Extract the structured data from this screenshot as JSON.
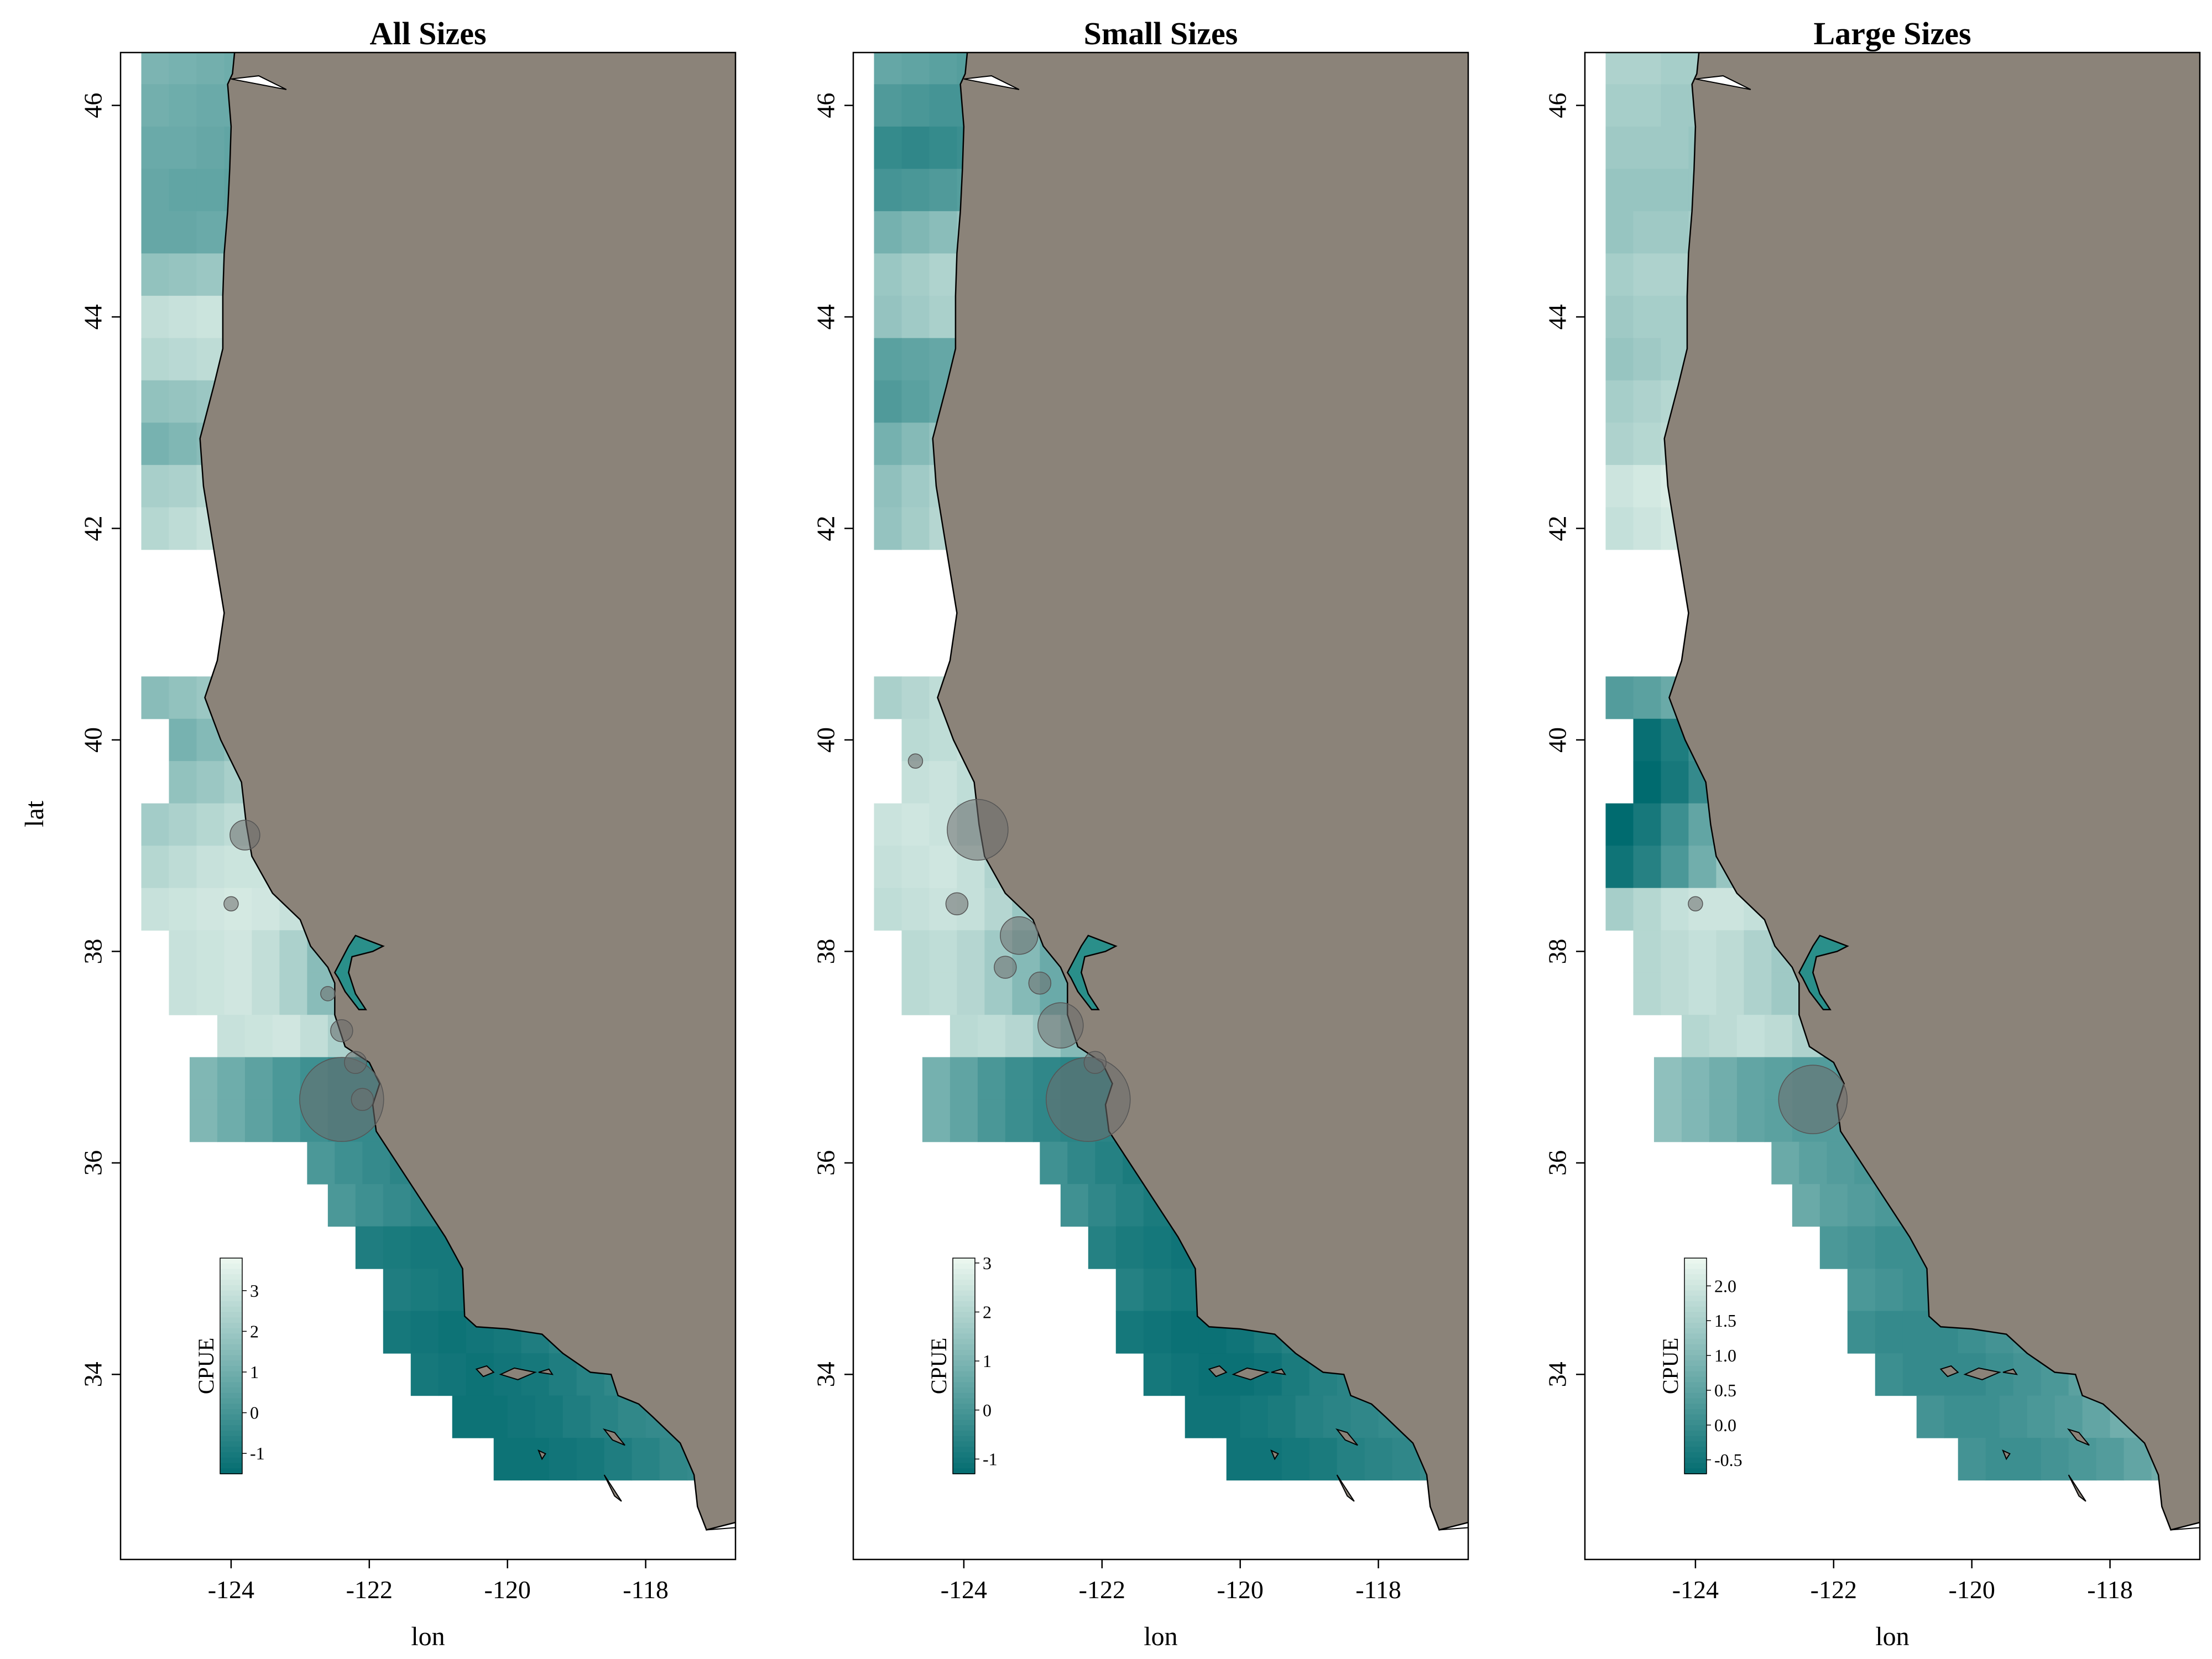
{
  "panels": [
    {
      "title": "All Sizes",
      "xlabel": "lon",
      "ylabel": "lat",
      "legend": {
        "title": "CPUE",
        "min": -1.5,
        "max": 3.8,
        "ticks": [
          "-1",
          "0",
          "1",
          "2",
          "3"
        ],
        "values": [
          -1,
          0,
          1,
          2,
          3
        ]
      },
      "grid_values": [
        [
          1.3,
          1.2,
          1.1,
          1.0,
          0.9
        ],
        [
          1.1,
          1.0,
          0.9,
          0.9,
          0.8
        ],
        [
          0.9,
          0.9,
          0.8,
          0.7,
          0.7
        ],
        [
          0.8,
          0.7,
          0.7,
          0.6,
          0.6
        ],
        [
          0.8,
          0.8,
          0.9,
          0.9,
          0.9
        ],
        [
          1.8,
          1.9,
          2.0,
          2.0,
          2.1
        ],
        [
          2.9,
          3.0,
          3.1,
          3.0,
          2.9
        ],
        [
          2.6,
          2.7,
          2.8,
          2.7,
          2.7
        ],
        [
          1.8,
          1.9,
          2.0,
          2.1,
          2.0
        ],
        [
          1.2,
          1.4,
          1.6,
          1.8,
          1.9
        ],
        [
          2.3,
          2.4,
          2.6,
          2.7,
          2.7
        ],
        [
          2.6,
          2.8,
          3.0,
          3.1,
          3.1
        ],
        [
          1.6,
          1.8,
          2.0,
          2.3,
          2.5,
          2.6
        ],
        [
          1.2,
          1.5,
          1.8,
          2.1,
          2.4,
          2.5,
          2.2
        ],
        [
          1.8,
          2.0,
          2.3,
          2.5,
          2.6,
          2.3,
          1.6,
          0.9
        ],
        [
          2.2,
          2.4,
          2.6,
          2.8,
          2.9,
          2.6,
          1.9,
          1.2,
          0.6
        ],
        [
          2.6,
          2.8,
          3.0,
          3.1,
          3.1,
          3.0,
          2.5,
          1.6,
          0.8,
          0.1
        ],
        [
          3.0,
          3.1,
          3.2,
          3.3,
          3.2,
          3.0,
          2.5,
          1.7,
          1.0,
          0.4
        ],
        [
          3.0,
          3.1,
          3.2,
          2.9,
          2.4,
          1.6,
          0.9,
          0.4
        ],
        [
          1.4,
          1.0,
          0.6,
          0.2,
          -0.1,
          -0.3
        ],
        [
          0.2,
          -0.1,
          -0.3,
          -0.5,
          -0.6,
          -0.6
        ],
        [
          -0.8,
          -0.9,
          -1.0,
          -1.0,
          -0.9,
          -0.8,
          -0.6,
          -0.4
        ],
        [
          -1.0,
          -1.1,
          -1.2,
          -1.1,
          -1.0,
          -0.8,
          -0.6,
          -0.4,
          -0.3
        ],
        [
          -1.2,
          -1.2,
          -1.1,
          -1.0,
          -0.8,
          -0.6,
          -0.4,
          -0.3,
          -0.2,
          -0.1
        ]
      ],
      "bubbles": [
        {
          "lon": -122.4,
          "lat": 36.6,
          "size": 10
        },
        {
          "lon": -123.8,
          "lat": 39.1,
          "size": 3
        },
        {
          "lon": -122.4,
          "lat": 37.25,
          "size": 2
        },
        {
          "lon": -122.2,
          "lat": 36.95,
          "size": 2
        },
        {
          "lon": -124.0,
          "lat": 38.45,
          "size": 1
        },
        {
          "lon": -122.6,
          "lat": 37.6,
          "size": 1
        },
        {
          "lon": -122.1,
          "lat": 36.6,
          "size": 2
        }
      ]
    },
    {
      "title": "Small Sizes",
      "xlabel": "lon",
      "ylabel": "",
      "legend": {
        "title": "CPUE",
        "min": -1.3,
        "max": 3.1,
        "ticks": [
          "-1",
          "0",
          "1",
          "2",
          "3"
        ],
        "values": [
          -1,
          0,
          1,
          2,
          3
        ]
      },
      "grid_values": [
        [
          0.6,
          0.5,
          0.4,
          0.3,
          0.3
        ],
        [
          0.2,
          0.1,
          0.0,
          0.0,
          0.1
        ],
        [
          -0.3,
          -0.4,
          -0.3,
          -0.2,
          -0.1
        ],
        [
          0.0,
          0.1,
          0.2,
          0.3,
          0.4
        ],
        [
          0.9,
          1.1,
          1.3,
          1.5,
          1.7
        ],
        [
          1.6,
          1.8,
          2.0,
          2.1,
          2.2
        ],
        [
          1.5,
          1.7,
          1.9,
          2.0,
          2.0
        ],
        [
          0.4,
          0.5,
          0.6,
          0.8,
          1.0
        ],
        [
          0.2,
          0.4,
          0.6,
          0.8,
          1.0
        ],
        [
          0.9,
          1.2,
          1.5,
          1.8,
          2.0
        ],
        [
          1.4,
          1.7,
          2.0,
          2.3,
          2.5
        ],
        [
          1.5,
          1.8,
          2.1,
          2.4,
          2.6
        ],
        [
          1.9,
          2.1,
          2.3,
          2.5,
          2.6,
          2.6
        ],
        [
          2.2,
          2.3,
          2.4,
          2.2,
          1.8,
          1.4,
          1.2
        ],
        [
          2.4,
          2.5,
          2.3,
          1.9,
          1.4,
          0.9,
          0.6,
          0.6
        ],
        [
          2.5,
          2.6,
          2.5,
          2.1,
          1.6,
          1.1,
          0.7,
          0.5,
          0.6
        ],
        [
          2.4,
          2.5,
          2.6,
          2.4,
          2.0,
          1.5,
          1.0,
          0.7,
          0.6,
          0.8
        ],
        [
          2.3,
          2.4,
          2.5,
          2.4,
          2.1,
          1.6,
          1.1,
          0.8,
          0.9,
          1.2
        ],
        [
          2.2,
          2.3,
          2.1,
          1.7,
          1.2,
          0.7,
          0.4,
          0.6
        ],
        [
          0.9,
          0.5,
          0.1,
          -0.2,
          -0.4,
          -0.5
        ],
        [
          -0.1,
          -0.4,
          -0.6,
          -0.8,
          -0.9,
          -0.8
        ],
        [
          -0.6,
          -0.8,
          -0.9,
          -1.0,
          -1.0,
          -0.9,
          -0.7,
          -0.5
        ],
        [
          -0.9,
          -1.0,
          -1.1,
          -1.1,
          -1.0,
          -0.8,
          -0.6,
          -0.5,
          -0.4
        ],
        [
          -1.0,
          -1.0,
          -0.9,
          -0.8,
          -0.6,
          -0.5,
          -0.4,
          -0.3,
          -0.3,
          -0.3
        ]
      ],
      "bubbles": [
        {
          "lon": -122.2,
          "lat": 36.6,
          "size": 10
        },
        {
          "lon": -123.8,
          "lat": 39.15,
          "size": 7
        },
        {
          "lon": -122.6,
          "lat": 37.3,
          "size": 5
        },
        {
          "lon": -123.2,
          "lat": 38.15,
          "size": 4
        },
        {
          "lon": -124.1,
          "lat": 38.45,
          "size": 2
        },
        {
          "lon": -123.4,
          "lat": 37.85,
          "size": 2
        },
        {
          "lon": -122.9,
          "lat": 37.7,
          "size": 2
        },
        {
          "lon": -122.1,
          "lat": 36.95,
          "size": 2
        },
        {
          "lon": -124.7,
          "lat": 39.8,
          "size": 1
        }
      ]
    },
    {
      "title": "Large Sizes",
      "xlabel": "lon",
      "ylabel": "",
      "legend": {
        "title": "CPUE",
        "min": -0.7,
        "max": 2.4,
        "ticks": [
          "-0.5",
          "0.0",
          "0.5",
          "1.0",
          "1.5",
          "2.0"
        ],
        "values": [
          -0.5,
          0,
          0.5,
          1,
          1.5,
          2
        ]
      },
      "grid_values": [
        [
          1.6,
          1.6,
          1.5,
          1.5,
          1.5
        ],
        [
          1.5,
          1.5,
          1.4,
          1.4,
          1.4
        ],
        [
          1.4,
          1.4,
          1.4,
          1.3,
          1.3
        ],
        [
          1.3,
          1.3,
          1.3,
          1.3,
          1.3
        ],
        [
          1.3,
          1.4,
          1.4,
          1.5,
          1.5
        ],
        [
          1.5,
          1.6,
          1.6,
          1.7,
          1.7
        ],
        [
          1.4,
          1.5,
          1.5,
          1.6,
          1.6
        ],
        [
          1.3,
          1.4,
          1.5,
          1.6,
          1.7
        ],
        [
          1.5,
          1.6,
          1.7,
          1.8,
          1.8
        ],
        [
          1.6,
          1.7,
          1.8,
          1.9,
          1.9
        ],
        [
          2.0,
          2.1,
          2.2,
          2.2,
          2.1
        ],
        [
          1.9,
          2.0,
          2.1,
          2.1,
          2.0
        ],
        [
          0.4,
          0.5,
          0.7,
          0.8,
          0.9,
          1.0
        ],
        [
          -0.6,
          -0.3,
          0.1,
          0.5,
          0.8,
          1.0,
          1.2
        ],
        [
          -0.7,
          -0.4,
          0.0,
          0.5,
          0.9,
          1.2,
          1.4,
          1.3
        ],
        [
          -0.7,
          -0.4,
          0.1,
          0.6,
          1.1,
          1.5,
          1.6,
          1.5,
          1.3
        ],
        [
          -0.5,
          -0.2,
          0.3,
          0.8,
          1.3,
          1.7,
          1.8,
          1.7,
          1.4,
          1.1
        ],
        [
          1.5,
          1.7,
          1.9,
          2.0,
          2.0,
          1.9,
          1.7,
          1.4,
          1.1,
          0.9
        ],
        [
          1.7,
          1.8,
          1.9,
          1.8,
          1.6,
          1.4,
          1.1,
          0.8
        ],
        [
          1.2,
          1.0,
          0.8,
          0.6,
          0.5,
          0.4
        ],
        [
          0.7,
          0.5,
          0.4,
          0.3,
          0.3,
          0.3
        ],
        [
          0.3,
          0.2,
          0.1,
          0.1,
          0.1,
          0.2,
          0.3,
          0.4
        ],
        [
          0.1,
          0.0,
          0.0,
          0.0,
          0.1,
          0.2,
          0.3,
          0.5,
          0.6
        ],
        [
          0.2,
          0.1,
          0.1,
          0.2,
          0.3,
          0.4,
          0.6,
          0.8,
          0.9,
          1.0
        ]
      ],
      "bubbles": [
        {
          "lon": -122.3,
          "lat": 36.6,
          "size": 8
        },
        {
          "lon": -124.0,
          "lat": 38.45,
          "size": 1
        }
      ]
    }
  ],
  "x_ticks": [
    "-124",
    "-122",
    "-120",
    "-118"
  ],
  "x_tick_values": [
    -124,
    -122,
    -120,
    -118
  ],
  "y_ticks": [
    "34",
    "36",
    "38",
    "40",
    "42",
    "44",
    "46"
  ],
  "y_tick_values": [
    34,
    36,
    38,
    40,
    42,
    44,
    46
  ],
  "colors": {
    "low": "#006b6f",
    "high": "#eaf6ee",
    "land": "#8b8379",
    "coast": "#000000",
    "bubble": "#6e6e6e"
  }
}
